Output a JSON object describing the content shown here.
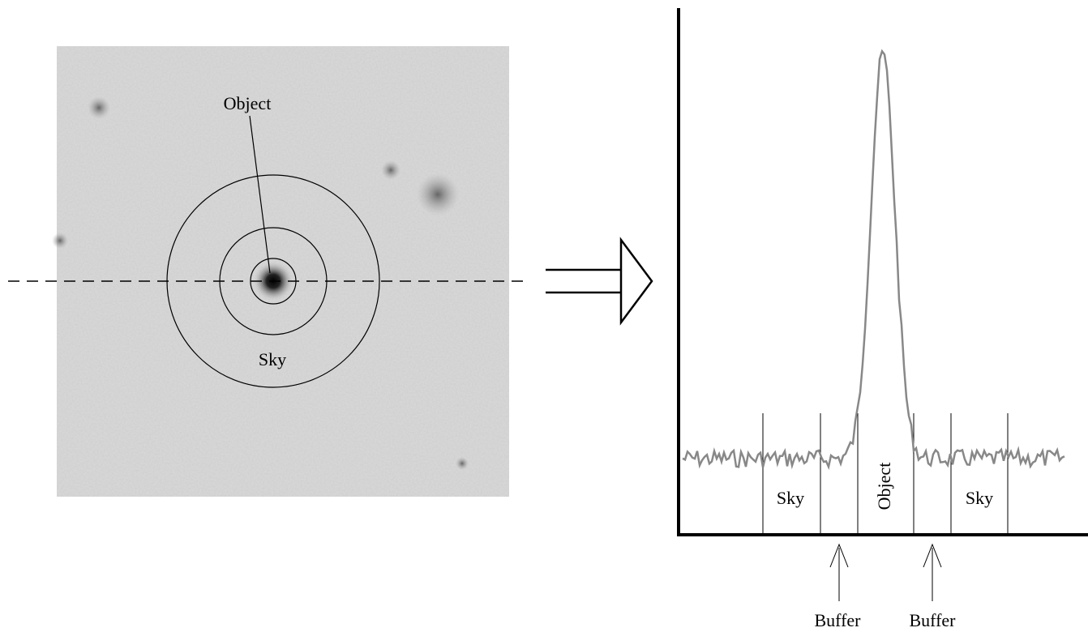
{
  "image_panel": {
    "object_label": "Object",
    "sky_label": "Sky"
  },
  "profile_panel": {
    "regions": [
      "Sky",
      "Object",
      "Sky"
    ],
    "buffers": [
      "Buffer",
      "Buffer"
    ]
  }
}
